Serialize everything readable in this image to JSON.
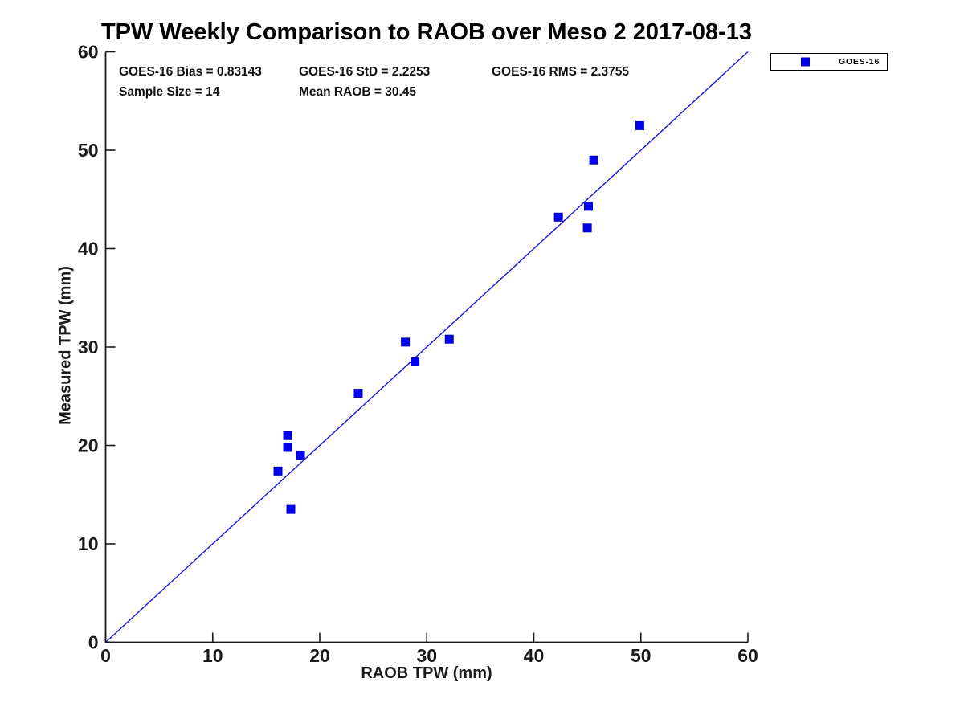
{
  "chart_data": {
    "type": "scatter",
    "title": "TPW Weekly Comparison to RAOB over Meso 2 2017-08-13",
    "xlabel": "RAOB TPW (mm)",
    "ylabel": "Measured TPW (mm)",
    "xlim": [
      0,
      60
    ],
    "ylim": [
      0,
      60
    ],
    "xticks": [
      0,
      10,
      20,
      30,
      40,
      50,
      60
    ],
    "yticks": [
      0,
      10,
      20,
      30,
      40,
      50,
      60
    ],
    "grid": false,
    "legend_position": "outside-top-right",
    "annotations": {
      "bias": "GOES-16 Bias = 0.83143",
      "std": "GOES-16 StD = 2.2253",
      "rms": "GOES-16 RMS = 2.3755",
      "sample_size": "Sample Size = 14",
      "mean_raob": "Mean RAOB = 30.45"
    },
    "series": [
      {
        "name": "GOES-16",
        "marker": "filled-square",
        "color": "#0101f0",
        "edge_color": "#0000c4",
        "points": [
          [
            16.1,
            17.4
          ],
          [
            17.0,
            21.0
          ],
          [
            17.0,
            19.8
          ],
          [
            17.3,
            13.5
          ],
          [
            18.2,
            19.0
          ],
          [
            23.6,
            25.3
          ],
          [
            28.0,
            30.5
          ],
          [
            28.9,
            28.5
          ],
          [
            32.1,
            30.8
          ],
          [
            42.3,
            43.2
          ],
          [
            45.0,
            42.1
          ],
          [
            45.1,
            44.3
          ],
          [
            45.6,
            49.0
          ],
          [
            49.9,
            52.5
          ]
        ]
      }
    ],
    "identity_line": {
      "from": [
        0,
        0
      ],
      "to": [
        60,
        60
      ],
      "color": "#1818da"
    },
    "axis_color": "#1a1a1a"
  }
}
